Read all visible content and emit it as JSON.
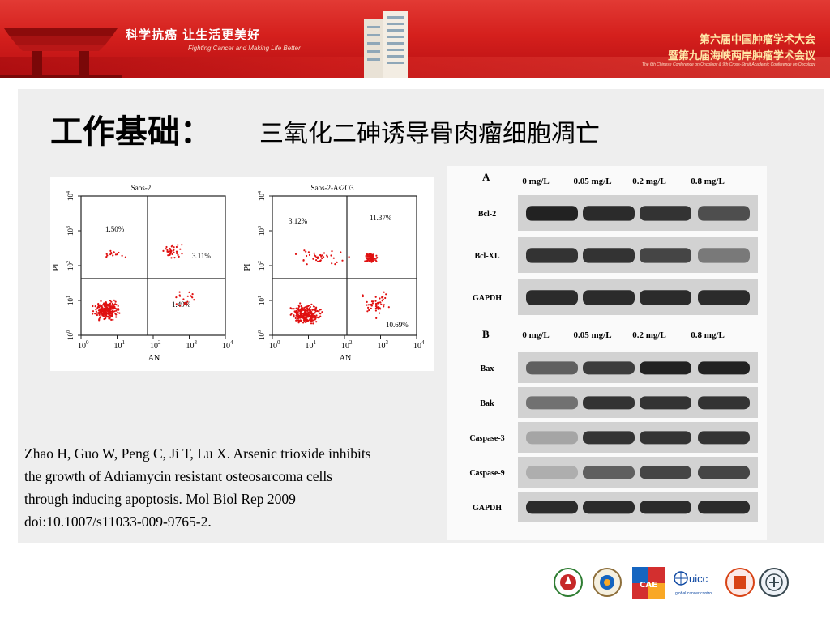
{
  "header": {
    "slogan_cn": "科学抗癌  让生活更美好",
    "slogan_en": "Fighting Cancer and Making Life Better",
    "conference_line1": "第六届中国肿瘤学术大会",
    "conference_line2": "暨第九届海峡两岸肿瘤学术会议",
    "conference_en": "The 6th Chinese Conference on Oncology & 9th Cross-Strait Academic Conference on Oncology"
  },
  "title": {
    "main": "工作基础：",
    "sub": "三氧化二砷诱导骨肉瘤细胞凋亡"
  },
  "flow": {
    "panels": [
      {
        "title": "Saos-2",
        "q_ul": "1.50%",
        "q_ur": "3.11%",
        "q_lr": "1.49%"
      },
      {
        "title": "Saos-2-As2O3",
        "q_ul": "3.12%",
        "q_ur": "11.37%",
        "q_lr": "10.69%"
      }
    ],
    "y_axis_label": "PI",
    "x_axis_label": "AN",
    "tick_base": "10",
    "tick_exps": [
      "0",
      "1",
      "2",
      "3",
      "4"
    ]
  },
  "blot": {
    "panel_a": {
      "letter": "A",
      "doses": [
        "0 mg/L",
        "0.05 mg/L",
        "0.2 mg/L",
        "0.8 mg/L"
      ],
      "rows": [
        {
          "label": "Bcl-2",
          "intensity": [
            0.95,
            0.9,
            0.85,
            0.7
          ]
        },
        {
          "label": "Bcl-XL",
          "intensity": [
            0.85,
            0.85,
            0.75,
            0.45
          ]
        },
        {
          "label": "GAPDH",
          "intensity": [
            0.9,
            0.9,
            0.9,
            0.9
          ]
        }
      ]
    },
    "panel_b": {
      "letter": "B",
      "doses": [
        "0 mg/L",
        "0.05 mg/L",
        "0.2 mg/L",
        "0.8 mg/L"
      ],
      "rows": [
        {
          "label": "Bax",
          "intensity": [
            0.6,
            0.8,
            0.95,
            0.95
          ]
        },
        {
          "label": "Bak",
          "intensity": [
            0.5,
            0.85,
            0.85,
            0.85
          ]
        },
        {
          "label": "Caspase-3",
          "intensity": [
            0.2,
            0.85,
            0.85,
            0.85
          ]
        },
        {
          "label": "Caspase-9",
          "intensity": [
            0.15,
            0.6,
            0.75,
            0.75
          ]
        },
        {
          "label": "GAPDH",
          "intensity": [
            0.9,
            0.9,
            0.9,
            0.9
          ]
        }
      ]
    }
  },
  "citation": {
    "line1": "Zhao H, Guo W, Peng C, Ji T, Lu X. Arsenic trioxide inhibits",
    "line2": "the growth of Adriamycin resistant osteosarcoma cells",
    "line3": "through inducing apoptosis. Mol Biol Rep 2009",
    "line4": "doi:10.1007/s11033-009-9765-2."
  },
  "logos": {
    "uicc_name": "uicc",
    "uicc_sub": "global cancer control",
    "cae_text": "CAE"
  },
  "colors": {
    "header_red": "#d5201d",
    "dot_red": "#e01010",
    "slogan_gold": "#ffe8a8"
  }
}
